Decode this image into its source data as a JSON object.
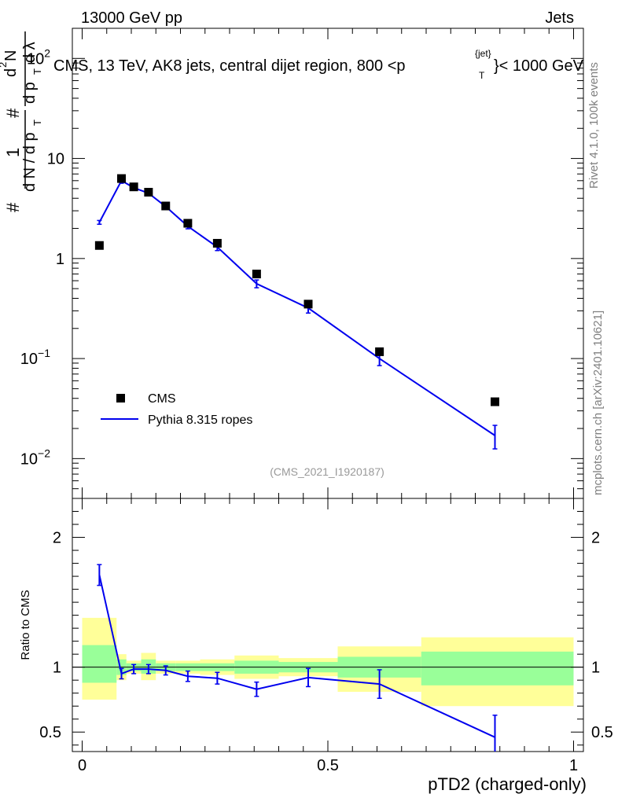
{
  "header": {
    "left": "13000 GeV pp",
    "right": "Jets"
  },
  "side_labels": {
    "rivet": "Rivet 4.1.0,  100k events",
    "mcplots": "mcplots.cern.ch [arXiv:2401.10621]"
  },
  "chart_data": [
    {
      "type": "scatter",
      "panel": "main",
      "title": "CMS, 13 TeV, AK8 jets, central dijet region, 800 <p_T^{jet}< 1000 GeV",
      "title_parts": {
        "pre": "CMS, 13 TeV, AK8 jets, central dijet region, 800 <p",
        "sup": "{jet}",
        "sub": "T",
        "post": "}< 1000 GeV"
      },
      "ylabel": "1/(dN/dp_T) d²N/(dp_T dλ)",
      "ylabel_parts": {
        "hash": "#",
        "one": "1",
        "dn": "d N / d p",
        "t": "T",
        "d2n": "d",
        "two": "2",
        "n": "N",
        "dp": "d p",
        "dl": "d λ"
      },
      "yscale": "log",
      "ylim": [
        0.004,
        200
      ],
      "y_ticks": [
        {
          "value": 0.01,
          "base": "10",
          "exp": "−2"
        },
        {
          "value": 0.1,
          "base": "10",
          "exp": "−1"
        },
        {
          "value": 1,
          "label": "1"
        },
        {
          "value": 10,
          "label": "10"
        },
        {
          "value": 100,
          "base": "10",
          "exp": "2"
        }
      ],
      "xlim": [
        -0.02,
        1.02
      ],
      "watermark": "(CMS_2021_I1920187)",
      "legend_position": "lower-left",
      "series": [
        {
          "name": "CMS",
          "style": "markers",
          "x": [
            0.035,
            0.08,
            0.105,
            0.135,
            0.17,
            0.215,
            0.275,
            0.355,
            0.46,
            0.605,
            0.84
          ],
          "y": [
            1.35,
            6.3,
            5.2,
            4.6,
            3.35,
            2.25,
            1.42,
            0.7,
            0.35,
            0.117,
            0.037
          ]
        },
        {
          "name": "Pythia 8.315 ropes",
          "style": "line",
          "color": "#0000ee",
          "x": [
            0.035,
            0.08,
            0.105,
            0.135,
            0.17,
            0.215,
            0.275,
            0.355,
            0.46,
            0.605,
            0.84
          ],
          "y": [
            2.3,
            6.0,
            5.1,
            4.5,
            3.3,
            2.1,
            1.3,
            0.56,
            0.32,
            0.1,
            0.017
          ],
          "yerr": [
            0.1,
            0.35,
            0.2,
            0.2,
            0.15,
            0.12,
            0.1,
            0.05,
            0.035,
            0.015,
            0.0045
          ]
        }
      ]
    },
    {
      "type": "line",
      "panel": "ratio",
      "ylabel": "Ratio to CMS",
      "xlabel": "pTD2 (charged-only)",
      "ylim": [
        0.35,
        2.3
      ],
      "y_ticks": [
        0.5,
        1,
        2
      ],
      "y_tick_labels": [
        "0.5",
        "1",
        "2"
      ],
      "xlim": [
        -0.02,
        1.02
      ],
      "x_ticks": [
        0,
        0.5,
        1
      ],
      "x_tick_labels": [
        "0",
        "0.5",
        "1"
      ],
      "uncertainty_bands": [
        {
          "x0": 0.0,
          "x1": 0.07,
          "inner": [
            0.88,
            1.17
          ],
          "outer": [
            0.75,
            1.38
          ]
        },
        {
          "x0": 0.07,
          "x1": 0.09,
          "inner": [
            0.94,
            1.06
          ],
          "outer": [
            0.9,
            1.1
          ]
        },
        {
          "x0": 0.09,
          "x1": 0.12,
          "inner": [
            0.97,
            1.03
          ],
          "outer": [
            0.95,
            1.05
          ]
        },
        {
          "x0": 0.12,
          "x1": 0.15,
          "inner": [
            0.95,
            1.06
          ],
          "outer": [
            0.9,
            1.11
          ]
        },
        {
          "x0": 0.15,
          "x1": 0.19,
          "inner": [
            0.97,
            1.03
          ],
          "outer": [
            0.95,
            1.05
          ]
        },
        {
          "x0": 0.19,
          "x1": 0.24,
          "inner": [
            0.97,
            1.03
          ],
          "outer": [
            0.95,
            1.05
          ]
        },
        {
          "x0": 0.24,
          "x1": 0.31,
          "inner": [
            0.97,
            1.03
          ],
          "outer": [
            0.94,
            1.06
          ]
        },
        {
          "x0": 0.31,
          "x1": 0.4,
          "inner": [
            0.95,
            1.05
          ],
          "outer": [
            0.91,
            1.09
          ]
        },
        {
          "x0": 0.4,
          "x1": 0.52,
          "inner": [
            0.96,
            1.04
          ],
          "outer": [
            0.93,
            1.07
          ]
        },
        {
          "x0": 0.52,
          "x1": 0.69,
          "inner": [
            0.92,
            1.08
          ],
          "outer": [
            0.81,
            1.16
          ]
        },
        {
          "x0": 0.69,
          "x1": 1.0,
          "inner": [
            0.86,
            1.12
          ],
          "outer": [
            0.7,
            1.23
          ]
        }
      ],
      "series": [
        {
          "name": "Pythia 8.315 ropes / CMS",
          "color": "#0000ee",
          "x": [
            0.035,
            0.08,
            0.105,
            0.135,
            0.17,
            0.215,
            0.275,
            0.355,
            0.46,
            0.605,
            0.84
          ],
          "y": [
            1.71,
            0.95,
            0.985,
            0.985,
            0.975,
            0.93,
            0.915,
            0.83,
            0.92,
            0.87,
            0.46
          ],
          "yerr": [
            0.08,
            0.04,
            0.035,
            0.035,
            0.035,
            0.04,
            0.045,
            0.055,
            0.07,
            0.11,
            0.17
          ]
        }
      ]
    }
  ],
  "colors": {
    "pythia": "#0000ee",
    "band_inner": "#99ff99",
    "band_outer": "#ffff99"
  }
}
